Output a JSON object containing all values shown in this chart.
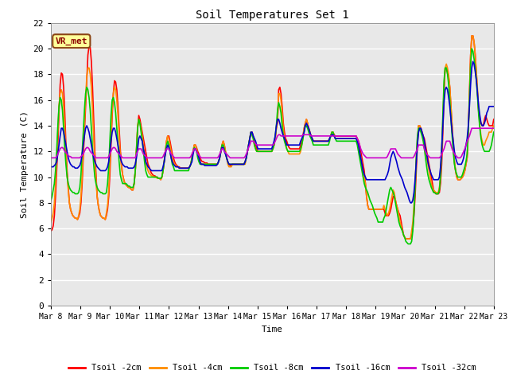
{
  "title": "Soil Temperatures Set 1",
  "xlabel": "Time",
  "ylabel": "Soil Temperature (C)",
  "ylim": [
    0,
    22
  ],
  "yticks": [
    0,
    2,
    4,
    6,
    8,
    10,
    12,
    14,
    16,
    18,
    20,
    22
  ],
  "fig_bg_color": "#ffffff",
  "plot_bg_color": "#e8e8e8",
  "grid_color": "#ffffff",
  "annotation_text": "VR_met",
  "annotation_bg": "#ffff99",
  "annotation_border": "#8B4513",
  "annotation_text_color": "#8B0000",
  "series_labels": [
    "Tsoil -2cm",
    "Tsoil -4cm",
    "Tsoil -8cm",
    "Tsoil -16cm",
    "Tsoil -32cm"
  ],
  "series_colors": [
    "#ff0000",
    "#ff8c00",
    "#00cc00",
    "#0000cc",
    "#cc00cc"
  ],
  "series_lw": [
    1.2,
    1.2,
    1.2,
    1.2,
    1.2
  ],
  "x_tick_labels": [
    "Mar 8",
    "Mar 9",
    "Mar 10",
    "Mar 11",
    "Mar 12",
    "Mar 13",
    "Mar 14",
    "Mar 15",
    "Mar 16",
    "Mar 17",
    "Mar 18",
    "Mar 19",
    "Mar 20",
    "Mar 21",
    "Mar 22",
    "Mar 23"
  ],
  "n_days": 16,
  "pts_per_day": 24,
  "data_2cm": [
    5.8,
    5.9,
    6.2,
    7.0,
    8.5,
    10.5,
    12.5,
    15.0,
    17.2,
    18.1,
    18.0,
    17.0,
    15.0,
    12.5,
    10.5,
    9.2,
    8.0,
    7.5,
    7.2,
    7.0,
    6.9,
    6.8,
    6.8,
    6.7,
    6.9,
    7.2,
    8.0,
    9.5,
    11.5,
    13.5,
    15.5,
    17.5,
    19.5,
    20.2,
    20.1,
    19.0,
    17.0,
    14.5,
    12.0,
    10.2,
    8.5,
    7.8,
    7.3,
    7.0,
    6.9,
    6.8,
    6.8,
    6.7,
    7.0,
    7.5,
    8.5,
    10.2,
    12.5,
    14.8,
    16.5,
    17.5,
    17.4,
    16.8,
    15.5,
    13.8,
    12.2,
    11.0,
    10.2,
    9.8,
    9.5,
    9.4,
    9.3,
    9.2,
    9.2,
    9.1,
    9.0,
    9.0,
    9.5,
    10.5,
    12.0,
    13.8,
    14.8,
    14.5,
    14.0,
    13.5,
    13.0,
    12.5,
    12.0,
    11.5,
    11.0,
    10.8,
    10.5,
    10.3,
    10.2,
    10.1,
    10.1,
    10.0,
    10.0,
    9.9,
    9.9,
    9.8,
    10.0,
    10.5,
    11.2,
    12.0,
    12.8,
    13.2,
    13.2,
    12.8,
    12.3,
    11.8,
    11.5,
    11.2,
    11.0,
    10.9,
    10.8,
    10.8,
    10.7,
    10.7,
    10.7,
    10.7,
    10.7,
    10.7,
    10.7,
    10.7,
    10.8,
    11.0,
    11.5,
    12.0,
    12.5,
    12.5,
    12.3,
    12.0,
    11.8,
    11.5,
    11.3,
    11.2,
    11.2,
    11.1,
    11.1,
    11.1,
    11.0,
    11.0,
    11.0,
    11.0,
    11.0,
    11.0,
    11.0,
    11.0,
    11.0,
    11.2,
    11.5,
    12.0,
    12.5,
    12.8,
    12.5,
    12.0,
    11.5,
    11.2,
    11.0,
    10.9,
    10.9,
    11.0,
    11.0,
    11.0,
    11.0,
    11.0,
    11.0,
    11.0,
    11.0,
    11.0,
    11.0,
    11.0,
    11.2,
    11.5,
    12.0,
    12.5,
    13.0,
    13.5,
    13.5,
    13.2,
    12.8,
    12.5,
    12.2,
    12.0,
    12.0,
    12.0,
    12.0,
    12.0,
    12.0,
    12.0,
    12.0,
    12.0,
    12.0,
    12.0,
    12.0,
    12.0,
    12.2,
    12.5,
    13.0,
    13.8,
    14.2,
    16.8,
    17.0,
    16.5,
    15.5,
    14.2,
    13.5,
    13.0,
    12.8,
    12.5,
    12.3,
    12.2,
    12.2,
    12.2,
    12.2,
    12.2,
    12.2,
    12.2,
    12.2,
    12.2,
    12.5,
    12.8,
    13.2,
    13.8,
    14.2,
    14.5,
    14.2,
    13.8,
    13.5,
    13.2,
    13.0,
    12.8,
    12.8,
    12.8,
    12.8,
    12.8,
    12.8,
    12.8,
    12.8,
    12.8,
    12.8,
    12.8,
    12.8,
    12.8,
    12.8,
    13.0,
    13.2,
    13.5,
    13.5,
    13.3,
    13.2,
    13.2,
    13.2,
    13.2,
    13.2,
    13.2,
    13.2,
    13.2,
    13.2,
    13.2,
    13.2,
    13.2,
    13.2,
    13.2,
    13.2,
    13.2,
    13.2,
    13.2,
    13.2,
    13.0,
    12.8,
    12.5,
    12.0,
    11.5,
    11.0,
    10.5,
    9.5,
    8.5,
    7.8,
    7.5,
    7.5,
    7.5,
    7.5,
    7.5,
    7.5,
    7.5,
    7.5,
    7.5,
    7.5,
    7.5,
    7.5,
    7.5,
    7.5,
    7.2,
    7.0,
    7.0,
    7.0,
    7.2,
    7.5,
    8.0,
    8.5,
    8.5,
    8.2,
    7.8,
    7.5,
    7.2,
    7.0,
    6.5,
    6.0,
    5.5,
    5.3,
    5.2,
    5.2,
    5.2,
    5.2,
    5.2,
    5.5,
    6.0,
    7.0,
    8.5,
    10.5,
    12.5,
    14.0,
    14.0,
    13.8,
    13.5,
    13.2,
    13.0,
    12.5,
    12.0,
    11.5,
    11.0,
    10.5,
    10.0,
    9.5,
    9.0,
    8.8,
    8.7,
    8.7,
    8.7,
    8.8,
    9.5,
    11.0,
    13.5,
    16.5,
    18.5,
    18.5,
    18.2,
    17.8,
    17.0,
    15.5,
    14.0,
    12.5,
    11.2,
    10.5,
    10.0,
    9.8,
    9.8,
    9.8,
    9.9,
    10.0,
    10.2,
    10.5,
    11.0,
    11.5,
    13.5,
    16.5,
    19.5,
    21.0,
    21.0,
    20.5,
    19.5,
    18.0,
    16.5,
    15.0,
    14.5,
    14.2,
    14.0,
    14.0,
    14.5,
    14.8,
    14.5,
    14.2,
    14.0,
    14.0,
    14.0,
    14.0,
    14.5
  ],
  "data_4cm": [
    6.5,
    6.8,
    7.2,
    8.0,
    9.5,
    11.5,
    13.5,
    15.5,
    16.5,
    16.8,
    16.5,
    15.5,
    13.8,
    11.8,
    10.2,
    9.0,
    8.0,
    7.5,
    7.2,
    7.0,
    6.9,
    6.8,
    6.8,
    6.7,
    7.0,
    7.5,
    8.5,
    10.0,
    12.0,
    14.2,
    16.0,
    17.8,
    18.5,
    18.5,
    18.0,
    17.0,
    15.2,
    13.0,
    11.2,
    9.8,
    8.5,
    7.8,
    7.3,
    7.0,
    6.9,
    6.8,
    6.8,
    6.7,
    7.2,
    7.8,
    9.0,
    11.0,
    13.2,
    15.2,
    16.5,
    17.0,
    16.8,
    16.0,
    14.8,
    13.2,
    11.8,
    10.8,
    10.2,
    9.8,
    9.5,
    9.4,
    9.3,
    9.2,
    9.2,
    9.1,
    9.0,
    9.0,
    9.5,
    10.5,
    12.2,
    14.0,
    14.5,
    14.2,
    13.8,
    13.2,
    12.5,
    11.8,
    11.2,
    10.8,
    10.5,
    10.3,
    10.2,
    10.1,
    10.1,
    10.0,
    10.0,
    10.0,
    9.9,
    9.9,
    9.9,
    9.8,
    10.0,
    10.5,
    11.2,
    12.0,
    12.8,
    13.2,
    13.0,
    12.5,
    12.0,
    11.5,
    11.2,
    11.0,
    10.9,
    10.8,
    10.8,
    10.7,
    10.7,
    10.7,
    10.7,
    10.7,
    10.7,
    10.7,
    10.7,
    10.7,
    10.8,
    11.0,
    11.5,
    12.0,
    12.5,
    12.5,
    12.2,
    11.8,
    11.5,
    11.2,
    11.0,
    11.0,
    11.0,
    11.0,
    11.0,
    11.0,
    11.0,
    11.0,
    11.0,
    11.0,
    11.0,
    11.0,
    11.0,
    11.0,
    11.0,
    11.2,
    11.5,
    12.0,
    12.5,
    12.8,
    12.5,
    12.0,
    11.5,
    11.0,
    10.8,
    10.8,
    10.8,
    11.0,
    11.0,
    11.0,
    11.0,
    11.0,
    11.0,
    11.0,
    11.0,
    11.0,
    11.0,
    11.0,
    11.0,
    11.5,
    12.0,
    12.5,
    13.0,
    13.5,
    13.3,
    13.0,
    12.5,
    12.2,
    12.0,
    12.0,
    12.0,
    12.0,
    12.0,
    12.0,
    12.0,
    12.0,
    12.0,
    12.0,
    12.0,
    12.0,
    12.0,
    12.0,
    12.2,
    12.5,
    13.0,
    13.8,
    14.5,
    16.5,
    16.5,
    16.0,
    15.0,
    13.8,
    13.0,
    12.5,
    12.2,
    12.0,
    11.8,
    11.8,
    11.8,
    11.8,
    11.8,
    11.8,
    11.8,
    11.8,
    11.8,
    11.8,
    12.0,
    12.5,
    13.0,
    13.8,
    14.2,
    14.5,
    14.2,
    13.8,
    13.5,
    13.2,
    13.0,
    12.8,
    12.8,
    12.8,
    12.8,
    12.8,
    12.8,
    12.8,
    12.8,
    12.8,
    12.8,
    12.8,
    12.8,
    12.8,
    12.8,
    13.0,
    13.2,
    13.5,
    13.5,
    13.2,
    13.0,
    13.0,
    13.0,
    13.0,
    13.0,
    13.0,
    13.0,
    13.0,
    13.0,
    13.0,
    13.0,
    13.0,
    13.0,
    13.0,
    13.0,
    13.0,
    13.0,
    13.0,
    13.0,
    12.8,
    12.5,
    12.0,
    11.5,
    11.0,
    10.5,
    10.0,
    9.5,
    8.5,
    7.8,
    7.5,
    7.5,
    7.5,
    7.5,
    7.5,
    7.5,
    7.5,
    7.5,
    7.5,
    7.5,
    7.5,
    7.5,
    7.5,
    7.8,
    7.5,
    7.2,
    7.0,
    7.2,
    7.5,
    8.0,
    8.5,
    9.0,
    8.8,
    8.2,
    7.8,
    7.5,
    7.0,
    6.5,
    6.2,
    5.8,
    5.5,
    5.3,
    5.2,
    5.2,
    5.2,
    5.2,
    5.2,
    5.8,
    6.5,
    7.8,
    9.5,
    11.5,
    13.0,
    14.0,
    14.0,
    13.8,
    13.5,
    13.0,
    12.5,
    12.0,
    11.5,
    11.0,
    10.5,
    10.0,
    9.5,
    9.2,
    9.0,
    8.9,
    8.8,
    8.8,
    8.8,
    9.2,
    10.0,
    12.0,
    14.5,
    17.0,
    18.5,
    18.8,
    18.5,
    18.0,
    17.0,
    15.5,
    14.0,
    12.5,
    11.2,
    10.5,
    10.0,
    9.8,
    9.8,
    9.8,
    9.9,
    10.0,
    10.2,
    10.5,
    11.0,
    11.5,
    13.5,
    16.5,
    19.5,
    21.0,
    21.0,
    20.5,
    19.5,
    18.2,
    16.8,
    15.2,
    14.0,
    13.2,
    12.8,
    12.5,
    12.5,
    12.8,
    13.0,
    13.2,
    13.5,
    13.5,
    13.5,
    13.8,
    14.0
  ],
  "data_8cm": [
    8.2,
    8.5,
    9.0,
    9.5,
    10.5,
    12.0,
    14.0,
    15.5,
    16.2,
    16.0,
    15.2,
    13.8,
    12.2,
    11.0,
    10.0,
    9.5,
    9.2,
    9.0,
    8.9,
    8.8,
    8.8,
    8.7,
    8.7,
    8.7,
    8.8,
    9.2,
    10.2,
    11.8,
    13.5,
    15.2,
    16.5,
    17.0,
    16.8,
    16.2,
    15.2,
    13.8,
    12.2,
    11.0,
    10.0,
    9.5,
    9.2,
    9.0,
    8.9,
    8.8,
    8.8,
    8.7,
    8.7,
    8.7,
    8.8,
    9.5,
    10.8,
    12.8,
    14.8,
    16.0,
    16.2,
    15.8,
    15.0,
    13.8,
    12.5,
    11.2,
    10.2,
    9.8,
    9.5,
    9.5,
    9.5,
    9.5,
    9.4,
    9.3,
    9.3,
    9.2,
    9.2,
    9.2,
    9.5,
    10.5,
    12.2,
    13.8,
    14.5,
    14.2,
    13.5,
    12.8,
    12.0,
    11.2,
    10.5,
    10.2,
    10.0,
    10.0,
    10.0,
    10.0,
    10.0,
    10.0,
    10.0,
    10.0,
    10.0,
    9.9,
    9.9,
    9.9,
    10.0,
    10.5,
    11.2,
    12.0,
    12.5,
    12.8,
    12.5,
    12.0,
    11.5,
    11.0,
    10.8,
    10.5,
    10.5,
    10.5,
    10.5,
    10.5,
    10.5,
    10.5,
    10.5,
    10.5,
    10.5,
    10.5,
    10.5,
    10.5,
    10.8,
    11.0,
    11.5,
    12.0,
    12.3,
    12.2,
    12.0,
    11.5,
    11.2,
    11.0,
    11.0,
    11.0,
    11.0,
    11.0,
    11.0,
    11.0,
    11.0,
    11.0,
    11.0,
    11.0,
    11.0,
    11.0,
    11.0,
    11.0,
    11.0,
    11.2,
    11.5,
    12.0,
    12.5,
    12.5,
    12.2,
    11.8,
    11.5,
    11.2,
    11.0,
    11.0,
    11.0,
    11.0,
    11.0,
    11.0,
    11.0,
    11.0,
    11.0,
    11.0,
    11.0,
    11.0,
    11.0,
    11.0,
    11.2,
    11.5,
    12.0,
    12.5,
    13.0,
    13.5,
    13.3,
    13.0,
    12.5,
    12.2,
    12.0,
    12.0,
    12.0,
    12.0,
    12.0,
    12.0,
    12.0,
    12.0,
    12.0,
    12.0,
    12.0,
    12.0,
    12.0,
    12.0,
    12.2,
    12.5,
    13.2,
    14.0,
    15.2,
    15.8,
    15.5,
    15.0,
    14.0,
    13.2,
    12.8,
    12.5,
    12.2,
    12.0,
    12.0,
    12.0,
    12.0,
    12.0,
    12.0,
    12.0,
    12.0,
    12.0,
    12.0,
    12.0,
    12.2,
    12.5,
    13.0,
    13.5,
    14.0,
    14.0,
    13.8,
    13.5,
    13.2,
    13.0,
    12.8,
    12.5,
    12.5,
    12.5,
    12.5,
    12.5,
    12.5,
    12.5,
    12.5,
    12.5,
    12.5,
    12.5,
    12.5,
    12.5,
    12.5,
    12.8,
    13.2,
    13.5,
    13.5,
    13.2,
    13.0,
    12.8,
    12.8,
    12.8,
    12.8,
    12.8,
    12.8,
    12.8,
    12.8,
    12.8,
    12.8,
    12.8,
    12.8,
    12.8,
    12.8,
    12.8,
    12.8,
    12.8,
    12.8,
    12.5,
    12.0,
    11.5,
    11.0,
    10.5,
    10.0,
    9.5,
    9.2,
    9.0,
    8.8,
    8.5,
    8.2,
    8.0,
    7.8,
    7.5,
    7.2,
    7.0,
    6.8,
    6.5,
    6.5,
    6.5,
    6.5,
    6.5,
    6.8,
    7.0,
    7.5,
    8.0,
    8.5,
    9.0,
    9.2,
    9.0,
    8.8,
    8.5,
    8.0,
    7.5,
    7.0,
    6.5,
    6.2,
    6.0,
    5.8,
    5.5,
    5.3,
    5.0,
    4.9,
    4.8,
    4.8,
    4.8,
    5.0,
    5.8,
    7.2,
    9.2,
    11.5,
    13.2,
    13.8,
    13.8,
    13.5,
    13.2,
    12.8,
    12.2,
    11.5,
    10.8,
    10.2,
    9.8,
    9.5,
    9.2,
    9.0,
    8.8,
    8.8,
    8.7,
    8.7,
    8.7,
    9.0,
    10.2,
    12.2,
    14.8,
    17.5,
    18.5,
    18.5,
    18.0,
    17.2,
    16.0,
    14.5,
    13.2,
    12.0,
    11.0,
    10.5,
    10.2,
    10.0,
    10.0,
    10.0,
    10.0,
    10.2,
    10.5,
    10.8,
    11.2,
    11.8,
    13.5,
    16.0,
    18.8,
    20.0,
    19.8,
    19.2,
    18.5,
    17.5,
    16.2,
    14.8,
    13.8,
    13.0,
    12.5,
    12.2,
    12.0,
    12.0,
    12.0,
    12.0,
    12.0,
    12.2,
    12.5,
    13.0,
    13.5
  ],
  "data_16cm": [
    10.8,
    10.8,
    10.8,
    10.9,
    11.0,
    11.2,
    11.8,
    12.5,
    13.2,
    13.8,
    13.8,
    13.5,
    13.0,
    12.5,
    12.0,
    11.5,
    11.2,
    11.0,
    10.9,
    10.8,
    10.8,
    10.7,
    10.7,
    10.7,
    10.8,
    10.9,
    11.2,
    11.8,
    12.5,
    13.2,
    13.8,
    14.0,
    13.8,
    13.5,
    13.0,
    12.5,
    12.0,
    11.5,
    11.2,
    11.0,
    10.8,
    10.7,
    10.6,
    10.5,
    10.5,
    10.5,
    10.5,
    10.5,
    10.6,
    10.8,
    11.2,
    12.0,
    12.8,
    13.5,
    13.8,
    13.8,
    13.5,
    13.0,
    12.5,
    12.0,
    11.5,
    11.2,
    11.0,
    10.9,
    10.8,
    10.8,
    10.8,
    10.7,
    10.7,
    10.7,
    10.7,
    10.7,
    10.8,
    11.0,
    11.5,
    12.2,
    13.0,
    13.2,
    13.0,
    12.8,
    12.2,
    11.8,
    11.2,
    11.0,
    10.8,
    10.7,
    10.6,
    10.5,
    10.5,
    10.5,
    10.5,
    10.5,
    10.5,
    10.5,
    10.5,
    10.5,
    10.5,
    10.8,
    11.2,
    11.8,
    12.2,
    12.5,
    12.3,
    12.0,
    11.5,
    11.2,
    11.0,
    10.9,
    10.8,
    10.8,
    10.8,
    10.7,
    10.7,
    10.7,
    10.7,
    10.7,
    10.7,
    10.7,
    10.7,
    10.7,
    10.8,
    11.0,
    11.2,
    11.8,
    12.2,
    12.2,
    12.0,
    11.8,
    11.5,
    11.2,
    11.0,
    11.0,
    11.0,
    10.9,
    10.9,
    10.9,
    10.9,
    10.9,
    10.9,
    10.9,
    10.9,
    10.9,
    10.9,
    10.9,
    11.0,
    11.2,
    11.5,
    12.0,
    12.3,
    12.3,
    12.0,
    11.8,
    11.5,
    11.2,
    11.0,
    11.0,
    11.0,
    11.0,
    11.0,
    11.0,
    11.0,
    11.0,
    11.0,
    11.0,
    11.0,
    11.0,
    11.0,
    11.0,
    11.2,
    11.5,
    12.0,
    12.5,
    13.0,
    13.5,
    13.5,
    13.2,
    13.0,
    12.8,
    12.5,
    12.2,
    12.2,
    12.2,
    12.2,
    12.2,
    12.2,
    12.2,
    12.2,
    12.2,
    12.2,
    12.2,
    12.2,
    12.2,
    12.5,
    12.8,
    13.2,
    14.0,
    14.5,
    14.5,
    14.2,
    13.8,
    13.5,
    13.2,
    13.0,
    12.8,
    12.5,
    12.5,
    12.5,
    12.5,
    12.5,
    12.5,
    12.5,
    12.5,
    12.5,
    12.5,
    12.5,
    12.5,
    12.8,
    13.0,
    13.2,
    13.5,
    14.0,
    14.2,
    14.0,
    13.8,
    13.5,
    13.2,
    13.0,
    12.8,
    12.8,
    12.8,
    12.8,
    12.8,
    12.8,
    12.8,
    12.8,
    12.8,
    12.8,
    12.8,
    12.8,
    12.8,
    12.8,
    13.0,
    13.2,
    13.3,
    13.3,
    13.2,
    13.0,
    13.0,
    13.0,
    13.0,
    13.0,
    13.0,
    13.0,
    13.0,
    13.0,
    13.0,
    13.0,
    13.0,
    13.0,
    13.0,
    13.0,
    13.0,
    13.0,
    13.0,
    13.0,
    12.8,
    12.5,
    12.0,
    11.5,
    11.0,
    10.5,
    10.2,
    10.0,
    9.8,
    9.8,
    9.8,
    9.8,
    9.8,
    9.8,
    9.8,
    9.8,
    9.8,
    9.8,
    9.8,
    9.8,
    9.8,
    9.8,
    9.8,
    9.8,
    9.8,
    10.0,
    10.2,
    10.5,
    11.0,
    11.5,
    11.8,
    12.0,
    11.8,
    11.5,
    11.2,
    10.8,
    10.5,
    10.2,
    10.0,
    9.8,
    9.5,
    9.2,
    9.0,
    8.8,
    8.5,
    8.2,
    8.0,
    8.0,
    8.2,
    8.8,
    9.8,
    11.2,
    12.5,
    13.5,
    13.8,
    13.8,
    13.5,
    13.2,
    12.8,
    12.2,
    11.8,
    11.2,
    10.8,
    10.5,
    10.2,
    10.0,
    9.8,
    9.8,
    9.8,
    9.8,
    9.8,
    10.0,
    10.8,
    12.2,
    14.0,
    15.8,
    16.8,
    17.0,
    16.8,
    16.2,
    15.5,
    14.5,
    13.5,
    12.8,
    12.0,
    11.5,
    11.2,
    11.0,
    11.0,
    11.0,
    11.0,
    11.2,
    11.5,
    12.0,
    12.5,
    13.0,
    14.0,
    15.5,
    17.2,
    18.5,
    19.0,
    18.8,
    18.2,
    17.5,
    16.5,
    15.5,
    14.8,
    14.2,
    14.0,
    14.0,
    14.2,
    14.5,
    15.0,
    15.2,
    15.5,
    15.5,
    15.5,
    15.5,
    15.5
  ],
  "data_32cm": [
    11.5,
    11.5,
    11.5,
    11.5,
    11.5,
    11.6,
    11.8,
    12.0,
    12.2,
    12.3,
    12.3,
    12.2,
    12.0,
    11.9,
    11.8,
    11.7,
    11.6,
    11.6,
    11.5,
    11.5,
    11.5,
    11.5,
    11.5,
    11.5,
    11.5,
    11.5,
    11.6,
    11.7,
    11.8,
    12.0,
    12.2,
    12.3,
    12.3,
    12.2,
    12.0,
    11.9,
    11.8,
    11.7,
    11.6,
    11.5,
    11.5,
    11.5,
    11.5,
    11.5,
    11.5,
    11.5,
    11.5,
    11.5,
    11.5,
    11.5,
    11.6,
    11.8,
    12.0,
    12.2,
    12.3,
    12.3,
    12.2,
    12.0,
    11.9,
    11.8,
    11.7,
    11.6,
    11.5,
    11.5,
    11.5,
    11.5,
    11.5,
    11.5,
    11.5,
    11.5,
    11.5,
    11.5,
    11.5,
    11.5,
    11.8,
    12.0,
    12.2,
    12.2,
    12.2,
    12.0,
    11.8,
    11.7,
    11.6,
    11.5,
    11.5,
    11.5,
    11.5,
    11.5,
    11.5,
    11.5,
    11.5,
    11.5,
    11.5,
    11.5,
    11.5,
    11.5,
    11.5,
    11.6,
    11.8,
    12.0,
    12.2,
    12.2,
    12.2,
    12.0,
    11.8,
    11.7,
    11.6,
    11.5,
    11.5,
    11.5,
    11.5,
    11.5,
    11.5,
    11.5,
    11.5,
    11.5,
    11.5,
    11.5,
    11.5,
    11.5,
    11.5,
    11.6,
    11.8,
    12.0,
    12.2,
    12.2,
    12.0,
    11.8,
    11.7,
    11.6,
    11.5,
    11.5,
    11.5,
    11.5,
    11.5,
    11.5,
    11.5,
    11.5,
    11.5,
    11.5,
    11.5,
    11.5,
    11.5,
    11.5,
    11.5,
    11.6,
    11.8,
    12.0,
    12.2,
    12.2,
    12.0,
    11.9,
    11.8,
    11.7,
    11.6,
    11.5,
    11.5,
    11.5,
    11.5,
    11.5,
    11.5,
    11.5,
    11.5,
    11.5,
    11.5,
    11.5,
    11.5,
    11.5,
    11.6,
    11.8,
    12.0,
    12.3,
    12.5,
    12.8,
    12.8,
    12.8,
    12.7,
    12.6,
    12.5,
    12.5,
    12.5,
    12.5,
    12.5,
    12.5,
    12.5,
    12.5,
    12.5,
    12.5,
    12.5,
    12.5,
    12.5,
    12.5,
    12.5,
    12.6,
    12.8,
    13.0,
    13.2,
    13.3,
    13.3,
    13.2,
    13.2,
    13.2,
    13.2,
    13.2,
    13.2,
    13.2,
    13.2,
    13.2,
    13.2,
    13.2,
    13.2,
    13.2,
    13.2,
    13.2,
    13.2,
    13.2,
    13.2,
    13.2,
    13.3,
    13.3,
    13.3,
    13.3,
    13.3,
    13.3,
    13.3,
    13.2,
    13.2,
    13.2,
    13.2,
    13.2,
    13.2,
    13.2,
    13.2,
    13.2,
    13.2,
    13.2,
    13.2,
    13.2,
    13.2,
    13.2,
    13.2,
    13.2,
    13.2,
    13.2,
    13.2,
    13.2,
    13.2,
    13.2,
    13.2,
    13.2,
    13.2,
    13.2,
    13.2,
    13.2,
    13.2,
    13.2,
    13.2,
    13.2,
    13.2,
    13.2,
    13.2,
    13.2,
    13.2,
    13.2,
    13.2,
    13.0,
    12.8,
    12.5,
    12.2,
    12.0,
    11.8,
    11.7,
    11.6,
    11.5,
    11.5,
    11.5,
    11.5,
    11.5,
    11.5,
    11.5,
    11.5,
    11.5,
    11.5,
    11.5,
    11.5,
    11.5,
    11.5,
    11.5,
    11.5,
    11.5,
    11.5,
    11.6,
    11.8,
    12.0,
    12.2,
    12.2,
    12.2,
    12.2,
    12.2,
    12.0,
    11.8,
    11.7,
    11.6,
    11.5,
    11.5,
    11.5,
    11.5,
    11.5,
    11.5,
    11.5,
    11.5,
    11.5,
    11.5,
    11.5,
    11.6,
    11.8,
    12.0,
    12.2,
    12.5,
    12.5,
    12.5,
    12.5,
    12.5,
    12.2,
    12.0,
    11.8,
    11.7,
    11.6,
    11.5,
    11.5,
    11.5,
    11.5,
    11.5,
    11.5,
    11.5,
    11.5,
    11.5,
    11.6,
    11.8,
    12.0,
    12.2,
    12.5,
    12.8,
    12.8,
    12.8,
    12.8,
    12.5,
    12.2,
    12.0,
    11.8,
    11.7,
    11.6,
    11.5,
    11.5,
    11.5,
    11.6,
    11.8,
    12.0,
    12.2,
    12.5,
    12.8,
    13.0,
    13.2,
    13.5,
    13.8,
    13.8,
    13.8,
    13.8,
    13.8,
    13.8,
    13.8,
    13.8,
    13.8,
    13.8,
    13.8,
    13.8,
    13.8,
    13.8,
    13.8,
    13.8,
    13.8,
    13.8,
    13.8,
    13.8
  ]
}
